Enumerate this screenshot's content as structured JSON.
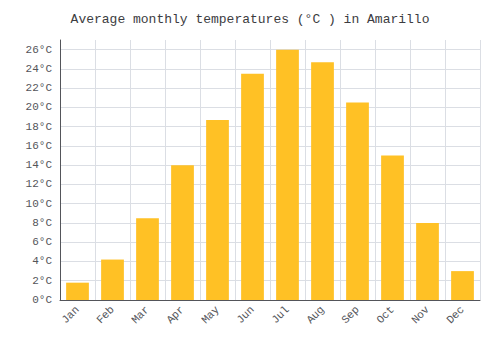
{
  "chart_data": {
    "type": "bar",
    "title": "Average monthly temperatures (°C ) in Amarillo",
    "categories": [
      "Jan",
      "Feb",
      "Mar",
      "Apr",
      "May",
      "Jun",
      "Jul",
      "Aug",
      "Sep",
      "Oct",
      "Nov",
      "Dec"
    ],
    "values": [
      1.8,
      4.2,
      8.5,
      14.0,
      18.7,
      23.5,
      26.0,
      24.7,
      20.5,
      15.0,
      8.0,
      3.0
    ],
    "color": "#FFC125",
    "ylim": [
      0,
      27
    ],
    "yticks": [
      {
        "value": 0,
        "label": "0°C"
      },
      {
        "value": 2,
        "label": "2°C"
      },
      {
        "value": 4,
        "label": "4°C"
      },
      {
        "value": 6,
        "label": "6°C"
      },
      {
        "value": 8,
        "label": "8°C"
      },
      {
        "value": 10,
        "label": "10°C"
      },
      {
        "value": 12,
        "label": "12°C"
      },
      {
        "value": 14,
        "label": "14°C"
      },
      {
        "value": 16,
        "label": "16°C"
      },
      {
        "value": 18,
        "label": "18°C"
      },
      {
        "value": 20,
        "label": "20°C"
      },
      {
        "value": 22,
        "label": "22°C"
      },
      {
        "value": 24,
        "label": "24°C"
      },
      {
        "value": 26,
        "label": "26°C"
      }
    ],
    "grid": true
  }
}
